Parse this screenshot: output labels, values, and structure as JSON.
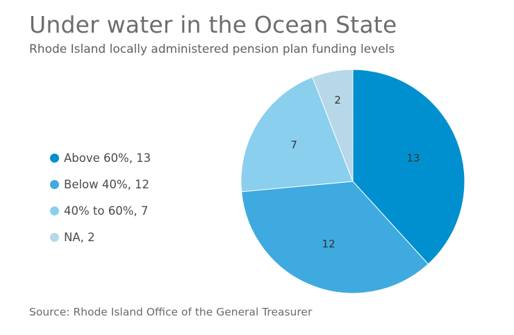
{
  "title": "Under water in the Ocean State",
  "subtitle": "Rhode Island locally administered pension plan funding levels",
  "source": "Source: Rhode Island Office of the General Treasurer",
  "chart_data": {
    "type": "pie",
    "title": "Under water in the Ocean State",
    "subtitle": "Rhode Island locally administered pension plan funding levels",
    "legend_position": "left",
    "slices": [
      {
        "name": "Above 60%",
        "value": 13,
        "color": "#0090cf",
        "legend": "Above 60%, 13",
        "label": "13"
      },
      {
        "name": "Below 40%",
        "value": 12,
        "color": "#3eaadf",
        "legend": "Below 40%, 12",
        "label": "12"
      },
      {
        "name": "40% to 60%",
        "value": 7,
        "color": "#8acfee",
        "legend": "40% to 60%, 7",
        "label": "7"
      },
      {
        "name": "NA",
        "value": 2,
        "color": "#b6d8e8",
        "legend": "NA, 2",
        "label": "2"
      }
    ]
  }
}
